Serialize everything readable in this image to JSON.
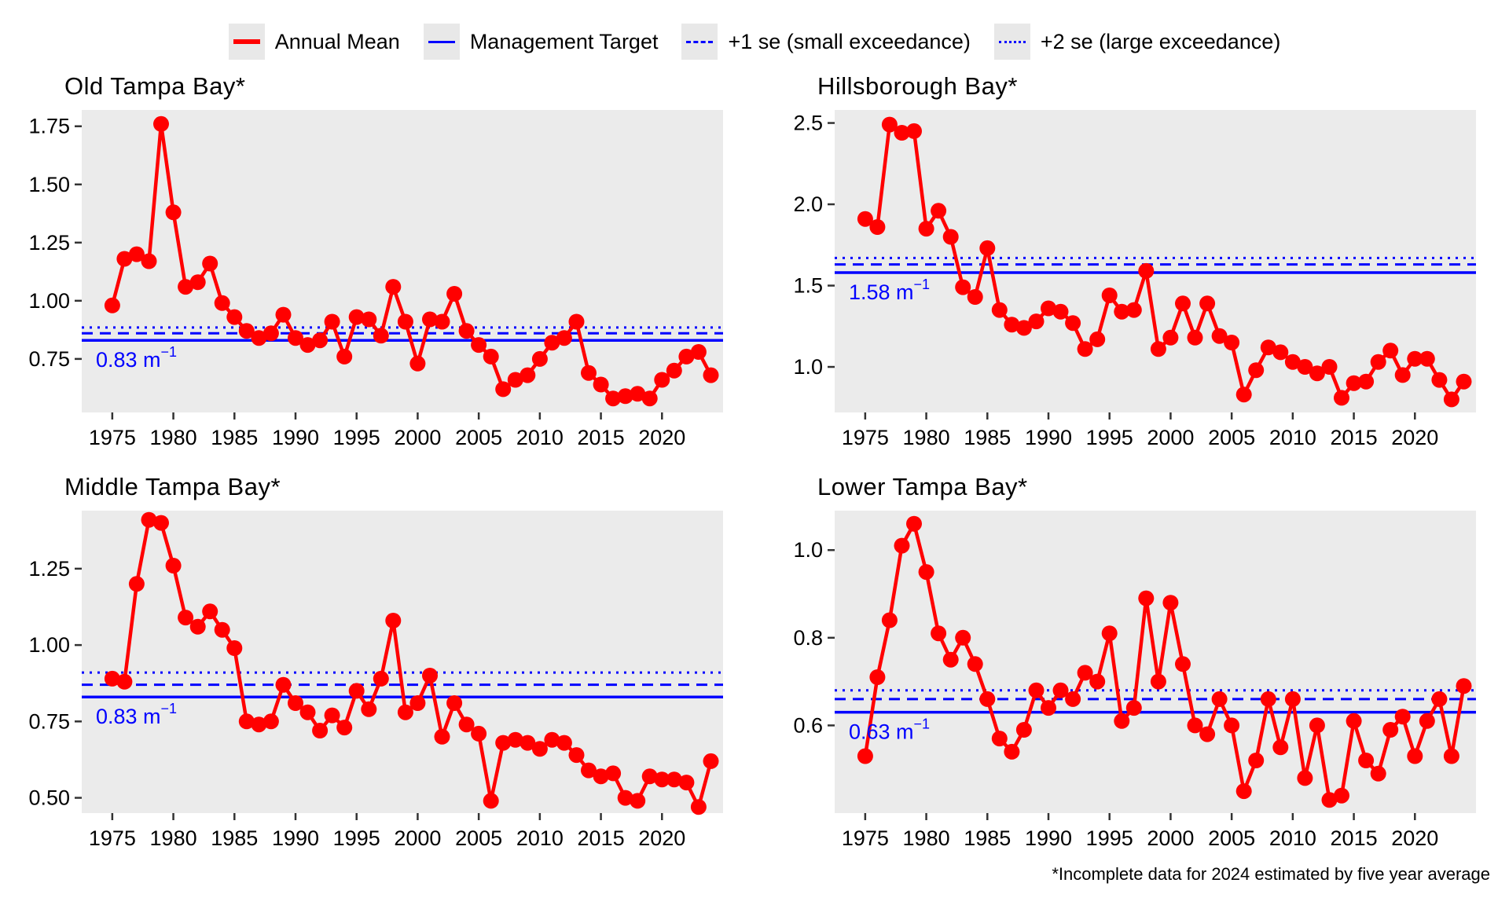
{
  "legend": {
    "items": [
      {
        "label": "Annual Mean",
        "key": "red-solid",
        "color": "#FF0000",
        "line_style": "solid"
      },
      {
        "label": "Management Target",
        "key": "blue-solid",
        "color": "#0000FF",
        "line_style": "solid"
      },
      {
        "label": "+1 se (small exceedance)",
        "key": "blue-dashed",
        "color": "#0000FF",
        "line_style": "dashed"
      },
      {
        "label": "+2 se (large exceedance)",
        "key": "blue-dotted",
        "color": "#0000FF",
        "line_style": "dotted"
      }
    ]
  },
  "colors": {
    "annual_mean": "#FF0000",
    "reference": "#0000FF",
    "panel_bg": "#EBEBEB",
    "legend_key_bg": "#E8E8E8",
    "tick": "#333333",
    "text": "#000000"
  },
  "footnote": "*Incomplete data for 2024 estimated by five year average",
  "chart_data": [
    {
      "type": "line",
      "title": "Old Tampa Bay*",
      "xlabel": "",
      "ylabel": "",
      "grid": false,
      "legend_position": "top-shared",
      "xlim": [
        1972.5,
        2025
      ],
      "ylim": [
        0.52,
        1.82
      ],
      "x_ticks": [
        1975,
        1980,
        1985,
        1990,
        1995,
        2000,
        2005,
        2010,
        2015,
        2020
      ],
      "y_ticks": {
        "values": [
          1.75,
          1.5,
          1.25,
          1.0,
          0.75
        ],
        "labels": [
          "1.75",
          "1.50",
          "1.25",
          "1.00",
          "0.75"
        ]
      },
      "thresholds": {
        "management_target": 0.83,
        "plus_1se": 0.86,
        "plus_2se": 0.885
      },
      "target_label": {
        "text": "0.83 m",
        "sup": "−1"
      },
      "series_name": "Annual Mean",
      "years": [
        1975,
        1976,
        1977,
        1978,
        1979,
        1980,
        1981,
        1982,
        1983,
        1984,
        1985,
        1986,
        1987,
        1988,
        1989,
        1990,
        1991,
        1992,
        1993,
        1994,
        1995,
        1996,
        1997,
        1998,
        1999,
        2000,
        2001,
        2002,
        2003,
        2004,
        2005,
        2006,
        2007,
        2008,
        2009,
        2010,
        2011,
        2012,
        2013,
        2014,
        2015,
        2016,
        2017,
        2018,
        2019,
        2020,
        2021,
        2022,
        2023,
        2024
      ],
      "values": [
        0.98,
        1.18,
        1.2,
        1.17,
        1.76,
        1.38,
        1.06,
        1.08,
        1.16,
        0.99,
        0.93,
        0.87,
        0.84,
        0.86,
        0.94,
        0.84,
        0.81,
        0.83,
        0.91,
        0.76,
        0.93,
        0.92,
        0.85,
        1.06,
        0.91,
        0.73,
        0.92,
        0.91,
        1.03,
        0.87,
        0.81,
        0.76,
        0.62,
        0.66,
        0.68,
        0.75,
        0.82,
        0.84,
        0.91,
        0.69,
        0.64,
        0.58,
        0.59,
        0.6,
        0.58,
        0.66,
        0.7,
        0.76,
        0.78,
        0.68
      ]
    },
    {
      "type": "line",
      "title": "Hillsborough Bay*",
      "xlabel": "",
      "ylabel": "",
      "grid": false,
      "legend_position": "top-shared",
      "xlim": [
        1972.5,
        2025
      ],
      "ylim": [
        0.72,
        2.58
      ],
      "x_ticks": [
        1975,
        1980,
        1985,
        1990,
        1995,
        2000,
        2005,
        2010,
        2015,
        2020
      ],
      "y_ticks": {
        "values": [
          2.5,
          2.0,
          1.5,
          1.0
        ],
        "labels": [
          "2.5",
          "2.0",
          "1.5",
          "1.0"
        ]
      },
      "thresholds": {
        "management_target": 1.58,
        "plus_1se": 1.63,
        "plus_2se": 1.67
      },
      "target_label": {
        "text": "1.58 m",
        "sup": "−1"
      },
      "series_name": "Annual Mean",
      "years": [
        1975,
        1976,
        1977,
        1978,
        1979,
        1980,
        1981,
        1982,
        1983,
        1984,
        1985,
        1986,
        1987,
        1988,
        1989,
        1990,
        1991,
        1992,
        1993,
        1994,
        1995,
        1996,
        1997,
        1998,
        1999,
        2000,
        2001,
        2002,
        2003,
        2004,
        2005,
        2006,
        2007,
        2008,
        2009,
        2010,
        2011,
        2012,
        2013,
        2014,
        2015,
        2016,
        2017,
        2018,
        2019,
        2020,
        2021,
        2022,
        2023,
        2024
      ],
      "values": [
        1.91,
        1.86,
        2.49,
        2.44,
        2.45,
        1.85,
        1.96,
        1.8,
        1.49,
        1.43,
        1.73,
        1.35,
        1.26,
        1.24,
        1.28,
        1.36,
        1.34,
        1.27,
        1.11,
        1.17,
        1.44,
        1.34,
        1.35,
        1.59,
        1.11,
        1.18,
        1.39,
        1.18,
        1.39,
        1.19,
        1.15,
        0.83,
        0.98,
        1.12,
        1.09,
        1.03,
        1.0,
        0.96,
        1.0,
        0.81,
        0.9,
        0.91,
        1.03,
        1.1,
        0.95,
        1.05,
        1.05,
        0.92,
        0.8,
        0.91
      ]
    },
    {
      "type": "line",
      "title": "Middle Tampa Bay*",
      "xlabel": "",
      "ylabel": "",
      "grid": false,
      "legend_position": "top-shared",
      "xlim": [
        1972.5,
        2025
      ],
      "ylim": [
        0.45,
        1.44
      ],
      "x_ticks": [
        1975,
        1980,
        1985,
        1990,
        1995,
        2000,
        2005,
        2010,
        2015,
        2020
      ],
      "y_ticks": {
        "values": [
          1.25,
          1.0,
          0.75,
          0.5
        ],
        "labels": [
          "1.25",
          "1.00",
          "0.75",
          "0.50"
        ]
      },
      "thresholds": {
        "management_target": 0.83,
        "plus_1se": 0.87,
        "plus_2se": 0.91
      },
      "target_label": {
        "text": "0.83 m",
        "sup": "−1"
      },
      "series_name": "Annual Mean",
      "years": [
        1975,
        1976,
        1977,
        1978,
        1979,
        1980,
        1981,
        1982,
        1983,
        1984,
        1985,
        1986,
        1987,
        1988,
        1989,
        1990,
        1991,
        1992,
        1993,
        1994,
        1995,
        1996,
        1997,
        1998,
        1999,
        2000,
        2001,
        2002,
        2003,
        2004,
        2005,
        2006,
        2007,
        2008,
        2009,
        2010,
        2011,
        2012,
        2013,
        2014,
        2015,
        2016,
        2017,
        2018,
        2019,
        2020,
        2021,
        2022,
        2023,
        2024
      ],
      "values": [
        0.89,
        0.88,
        1.2,
        1.41,
        1.4,
        1.26,
        1.09,
        1.06,
        1.11,
        1.05,
        0.99,
        0.75,
        0.74,
        0.75,
        0.87,
        0.81,
        0.78,
        0.72,
        0.77,
        0.73,
        0.85,
        0.79,
        0.89,
        1.08,
        0.78,
        0.81,
        0.9,
        0.7,
        0.81,
        0.74,
        0.71,
        0.49,
        0.68,
        0.69,
        0.68,
        0.66,
        0.69,
        0.68,
        0.64,
        0.59,
        0.57,
        0.58,
        0.5,
        0.49,
        0.57,
        0.56,
        0.56,
        0.55,
        0.47,
        0.62
      ]
    },
    {
      "type": "line",
      "title": "Lower Tampa Bay*",
      "xlabel": "",
      "ylabel": "",
      "grid": false,
      "legend_position": "top-shared",
      "xlim": [
        1972.5,
        2025
      ],
      "ylim": [
        0.4,
        1.09
      ],
      "x_ticks": [
        1975,
        1980,
        1985,
        1990,
        1995,
        2000,
        2005,
        2010,
        2015,
        2020
      ],
      "y_ticks": {
        "values": [
          1.0,
          0.8,
          0.6
        ],
        "labels": [
          "1.0",
          "0.8",
          "0.6"
        ]
      },
      "thresholds": {
        "management_target": 0.63,
        "plus_1se": 0.66,
        "plus_2se": 0.68
      },
      "target_label": {
        "text": "0.63 m",
        "sup": "−1"
      },
      "series_name": "Annual Mean",
      "years": [
        1975,
        1976,
        1977,
        1978,
        1979,
        1980,
        1981,
        1982,
        1983,
        1984,
        1985,
        1986,
        1987,
        1988,
        1989,
        1990,
        1991,
        1992,
        1993,
        1994,
        1995,
        1996,
        1997,
        1998,
        1999,
        2000,
        2001,
        2002,
        2003,
        2004,
        2005,
        2006,
        2007,
        2008,
        2009,
        2010,
        2011,
        2012,
        2013,
        2014,
        2015,
        2016,
        2017,
        2018,
        2019,
        2020,
        2021,
        2022,
        2023,
        2024
      ],
      "values": [
        0.53,
        0.71,
        0.84,
        1.01,
        1.06,
        0.95,
        0.81,
        0.75,
        0.8,
        0.74,
        0.66,
        0.57,
        0.54,
        0.59,
        0.68,
        0.64,
        0.68,
        0.66,
        0.72,
        0.7,
        0.81,
        0.61,
        0.64,
        0.89,
        0.7,
        0.88,
        0.74,
        0.6,
        0.58,
        0.66,
        0.6,
        0.45,
        0.52,
        0.66,
        0.55,
        0.66,
        0.48,
        0.6,
        0.43,
        0.44,
        0.61,
        0.52,
        0.49,
        0.59,
        0.62,
        0.53,
        0.61,
        0.66,
        0.53,
        0.69
      ]
    }
  ]
}
